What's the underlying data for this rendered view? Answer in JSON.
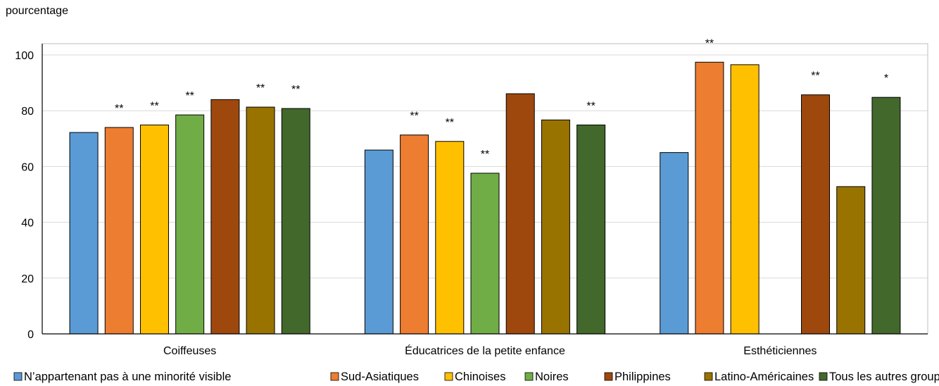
{
  "chart_data": {
    "type": "bar",
    "ylabel": "pourcentage",
    "xlabel": "",
    "ylim": [
      0,
      100
    ],
    "yticks": [
      0,
      20,
      40,
      60,
      80,
      100
    ],
    "grid": true,
    "legend_position": "bottom",
    "categories": [
      "Coiffeuses",
      "Éducatrices de la petite enfance",
      "Esthéticiennes"
    ],
    "series": [
      {
        "name": "N’appartenant pas à une minorité visible",
        "color": "#5B9BD5",
        "values": [
          72.2,
          65.9,
          65.0
        ],
        "annotations": [
          "",
          "",
          ""
        ]
      },
      {
        "name": "Sud-Asiatiques",
        "color": "#ED7D31",
        "values": [
          74.0,
          71.3,
          97.4
        ],
        "annotations": [
          "**",
          "**",
          "**"
        ]
      },
      {
        "name": "Chinoises",
        "color": "#FFC000",
        "values": [
          74.9,
          69.0,
          96.5
        ],
        "annotations": [
          "**",
          "**",
          ""
        ]
      },
      {
        "name": "Noires",
        "color": "#70AD47",
        "values": [
          78.5,
          57.6,
          null
        ],
        "annotations": [
          "**",
          "**",
          ""
        ]
      },
      {
        "name": "Philippines",
        "color": "#9E480E",
        "values": [
          84.0,
          86.1,
          85.7
        ],
        "annotations": [
          "",
          "",
          "**"
        ]
      },
      {
        "name": "Latino-Américaines",
        "color": "#997300",
        "values": [
          81.3,
          76.7,
          52.8
        ],
        "annotations": [
          "**",
          "",
          ""
        ]
      },
      {
        "name": "Tous les autres groupes désignés",
        "color": "#43682B",
        "values": [
          80.8,
          74.9,
          84.8
        ],
        "annotations": [
          "**",
          "**",
          "*"
        ]
      }
    ]
  }
}
